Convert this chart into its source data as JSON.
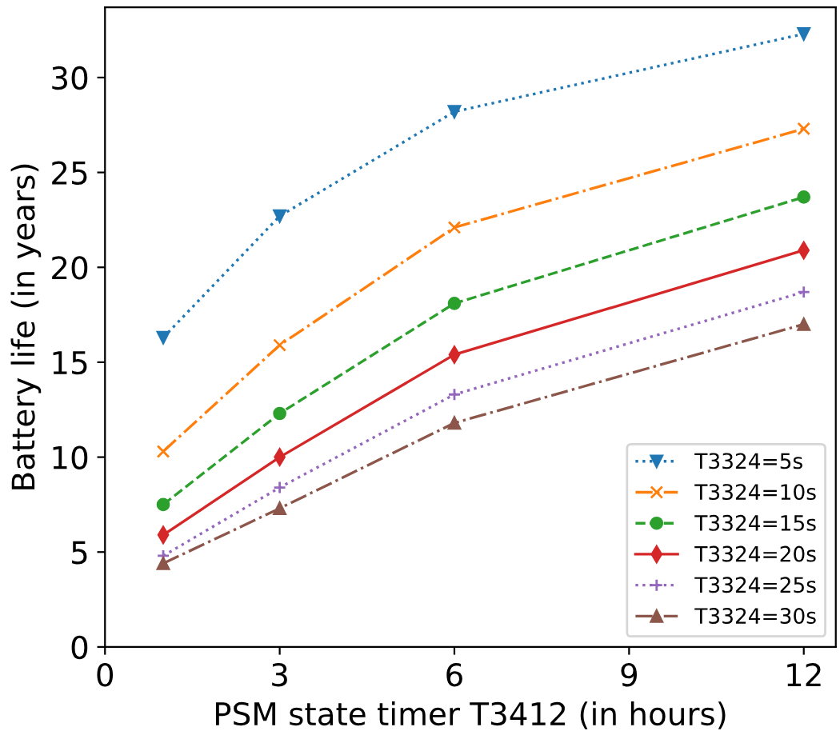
{
  "chart_data": {
    "type": "line",
    "xlabel": "PSM state timer T3412 (in hours)",
    "ylabel": "Battery life (in years)",
    "x": [
      1,
      3,
      6,
      12
    ],
    "xlim": [
      0,
      12.55
    ],
    "xticks": [
      0,
      3,
      6,
      9,
      12
    ],
    "ylim": [
      0,
      33.7
    ],
    "yticks": [
      0,
      5,
      10,
      15,
      20,
      25,
      30
    ],
    "grid": false,
    "legend": "bottom right",
    "series": [
      {
        "name": "T3324=5s",
        "color": "#1f77b4",
        "marker": "triangle_down",
        "line_style": "dotted",
        "values": [
          16.3,
          22.7,
          28.2,
          32.3
        ]
      },
      {
        "name": "T3324=10s",
        "color": "#ff7f0e",
        "marker": "x",
        "line_style": "dashdot",
        "values": [
          10.3,
          15.9,
          22.1,
          27.3
        ]
      },
      {
        "name": "T3324=15s",
        "color": "#2ca02c",
        "marker": "circle",
        "line_style": "dashed",
        "values": [
          7.5,
          12.3,
          18.1,
          23.7
        ]
      },
      {
        "name": "T3324=20s",
        "color": "#d62728",
        "marker": "diamond",
        "line_style": "solid",
        "values": [
          5.9,
          10.0,
          15.4,
          20.9
        ]
      },
      {
        "name": "T3324=25s",
        "color": "#9467bd",
        "marker": "plus",
        "line_style": "dotted",
        "values": [
          4.8,
          8.4,
          13.3,
          18.7
        ]
      },
      {
        "name": "T3324=30s",
        "color": "#8c564b",
        "marker": "triangle",
        "line_style": "dashdot",
        "values": [
          4.4,
          7.3,
          11.8,
          17.0
        ]
      }
    ]
  }
}
